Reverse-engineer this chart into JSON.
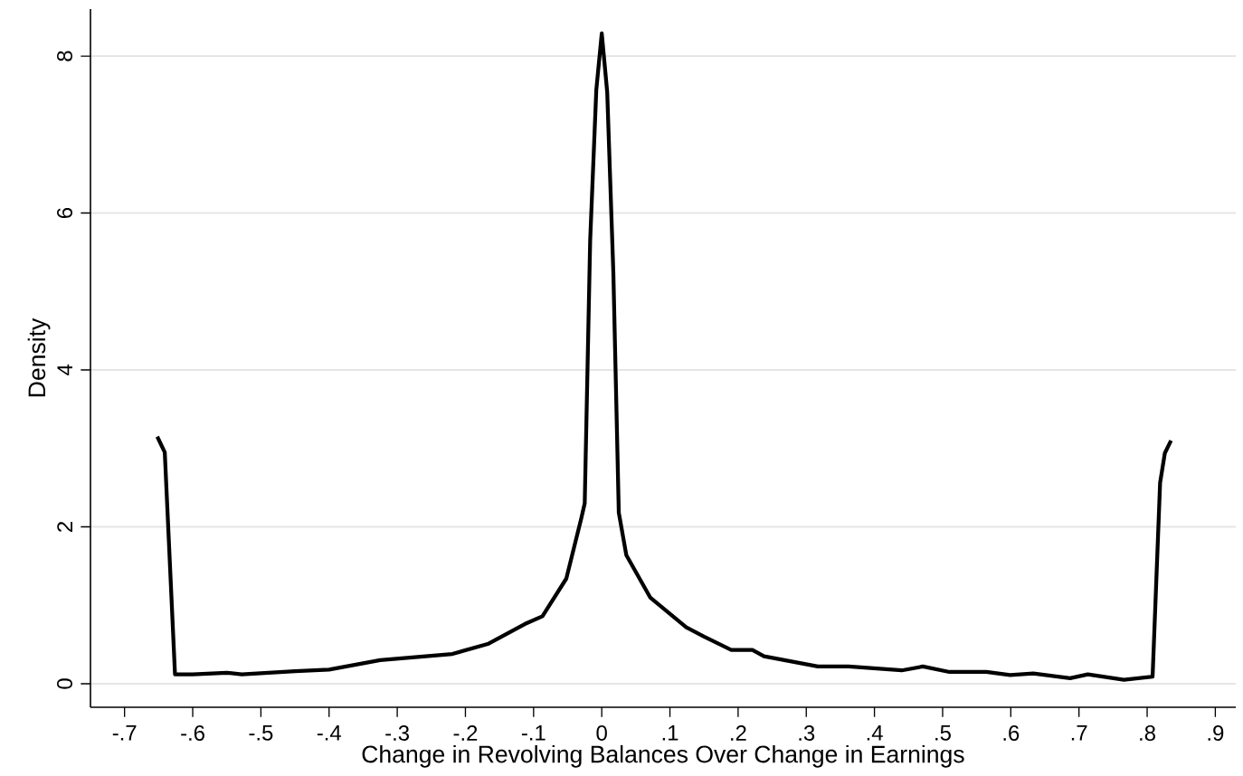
{
  "chart_data": {
    "type": "line",
    "xlabel": "Change in Revolving Balances Over Change in Earnings",
    "ylabel": "Density",
    "x": [
      -0.652,
      -0.641,
      -0.626,
      -0.6,
      -0.55,
      -0.528,
      -0.45,
      -0.4,
      -0.325,
      -0.219,
      -0.166,
      -0.113,
      -0.087,
      -0.052,
      -0.03,
      -0.025,
      -0.017,
      -0.008,
      0,
      0.008,
      0.017,
      0.025,
      0.036,
      0.071,
      0.124,
      0.15,
      0.19,
      0.221,
      0.238,
      0.317,
      0.362,
      0.44,
      0.471,
      0.51,
      0.564,
      0.599,
      0.633,
      0.687,
      0.713,
      0.766,
      0.808,
      0.819,
      0.826,
      0.835
    ],
    "series": [
      {
        "color": "#000000",
        "values": [
          3.15,
          2.95,
          0.12,
          0.12,
          0.14,
          0.12,
          0.16,
          0.18,
          0.3,
          0.38,
          0.51,
          0.76,
          0.86,
          1.34,
          2.11,
          2.3,
          5.65,
          7.57,
          8.29,
          7.54,
          5.24,
          2.18,
          1.64,
          1.1,
          0.72,
          0.6,
          0.43,
          0.43,
          0.35,
          0.22,
          0.22,
          0.17,
          0.22,
          0.15,
          0.15,
          0.11,
          0.13,
          0.07,
          0.12,
          0.05,
          0.09,
          2.56,
          2.94,
          3.1
        ]
      }
    ],
    "xlim": [
      -0.75,
      0.93
    ],
    "ylim": [
      -0.3,
      8.6
    ],
    "xticks": [
      {
        "value": -0.7,
        "label": "-.7"
      },
      {
        "value": -0.6,
        "label": "-.6"
      },
      {
        "value": -0.5,
        "label": "-.5"
      },
      {
        "value": -0.4,
        "label": "-.4"
      },
      {
        "value": -0.3,
        "label": "-.3"
      },
      {
        "value": -0.2,
        "label": "-.2"
      },
      {
        "value": -0.1,
        "label": "-.1"
      },
      {
        "value": 0,
        "label": "0"
      },
      {
        "value": 0.1,
        "label": ".1"
      },
      {
        "value": 0.2,
        "label": ".2"
      },
      {
        "value": 0.3,
        "label": ".3"
      },
      {
        "value": 0.4,
        "label": ".4"
      },
      {
        "value": 0.5,
        "label": ".5"
      },
      {
        "value": 0.6,
        "label": ".6"
      },
      {
        "value": 0.7,
        "label": ".7"
      },
      {
        "value": 0.8,
        "label": ".8"
      },
      {
        "value": 0.9,
        "label": ".9"
      }
    ],
    "yticks": [
      0,
      2,
      4,
      6,
      8
    ],
    "grid": "y",
    "marker": "none",
    "line_style": "solid"
  }
}
